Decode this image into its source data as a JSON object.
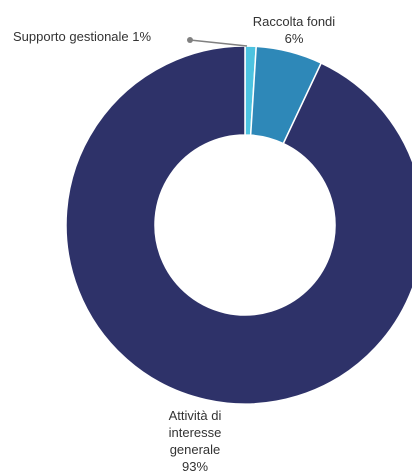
{
  "chart_data": {
    "type": "pie",
    "subtype": "donut",
    "slices": [
      {
        "label_lines": [
          "Raccolta fondi",
          "6%"
        ],
        "value": 6,
        "color": "#2e88b8"
      },
      {
        "label_lines": [
          "Attività di",
          "interesse",
          "generale",
          "93%"
        ],
        "value": 93,
        "color": "#2e3269"
      },
      {
        "label_lines": [
          "Supporto gestionale 1%"
        ],
        "value": 1,
        "color": "#4dc3e0"
      }
    ]
  }
}
